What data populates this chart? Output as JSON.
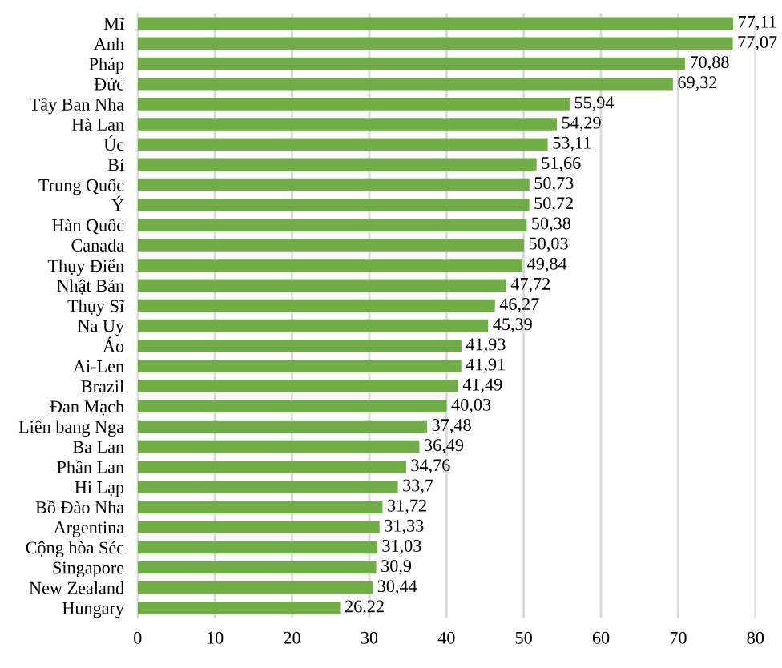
{
  "chart_data": {
    "type": "bar",
    "orientation": "horizontal",
    "color": "#70ad47",
    "categories": [
      "Mĩ",
      "Anh",
      "Pháp",
      "Đức",
      "Tây Ban Nha",
      "Hà Lan",
      "Úc",
      "Bỉ",
      "Trung Quốc",
      "Ý",
      "Hàn Quốc",
      "Canada",
      "Thụy Điển",
      "Nhật Bản",
      "Thụy Sĩ",
      "Na Uy",
      "Áo",
      "Ai-Len",
      "Brazil",
      "Đan Mạch",
      "Liên bang Nga",
      "Ba Lan",
      "Phần Lan",
      "Hi Lạp",
      "Bồ Đào Nha",
      "Argentina",
      "Cộng hòa Séc",
      "Singapore",
      "New Zealand",
      "Hungary"
    ],
    "values": [
      77.11,
      77.07,
      70.88,
      69.32,
      55.94,
      54.29,
      53.11,
      51.66,
      50.73,
      50.72,
      50.38,
      50.03,
      49.84,
      47.72,
      46.27,
      45.39,
      41.93,
      41.91,
      41.49,
      40.03,
      37.48,
      36.49,
      34.76,
      33.7,
      31.72,
      31.33,
      31.03,
      30.9,
      30.44,
      26.22
    ],
    "value_labels": [
      "77,11",
      "77,07",
      "70,88",
      "69,32",
      "55,94",
      "54,29",
      "53,11",
      "51,66",
      "50,73",
      "50,72",
      "50,38",
      "50,03",
      "49,84",
      "47,72",
      "46,27",
      "45,39",
      "41,93",
      "41,91",
      "41,49",
      "40,03",
      "37,48",
      "36,49",
      "34,76",
      "33,7",
      "31,72",
      "31,33",
      "31,03",
      "30,9",
      "30,44",
      "26,22"
    ],
    "xlim": [
      0,
      80
    ],
    "xticks": [
      0,
      10,
      20,
      30,
      40,
      50,
      60,
      70,
      80
    ],
    "grid": "x"
  }
}
